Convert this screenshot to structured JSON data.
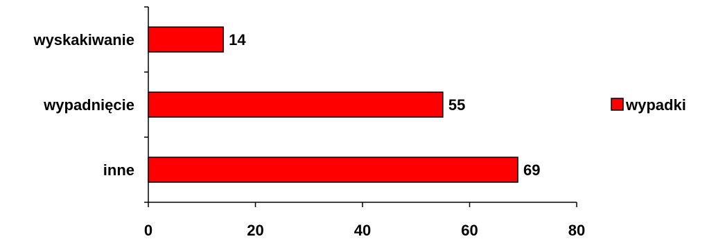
{
  "chart_data": {
    "type": "bar",
    "orientation": "horizontal",
    "categories": [
      "wyskakiwanie",
      "wypadnięcie",
      "inne"
    ],
    "series": [
      {
        "name": "wypadki",
        "values": [
          14,
          55,
          69
        ],
        "color": "#ff0000"
      }
    ],
    "data_labels": [
      "14",
      "55",
      "69"
    ],
    "x_ticks": [
      "0",
      "20",
      "40",
      "60",
      "80"
    ],
    "xlim": [
      0,
      80
    ],
    "grid": false,
    "legend_position": "right",
    "title": "",
    "xlabel": "",
    "ylabel": ""
  }
}
